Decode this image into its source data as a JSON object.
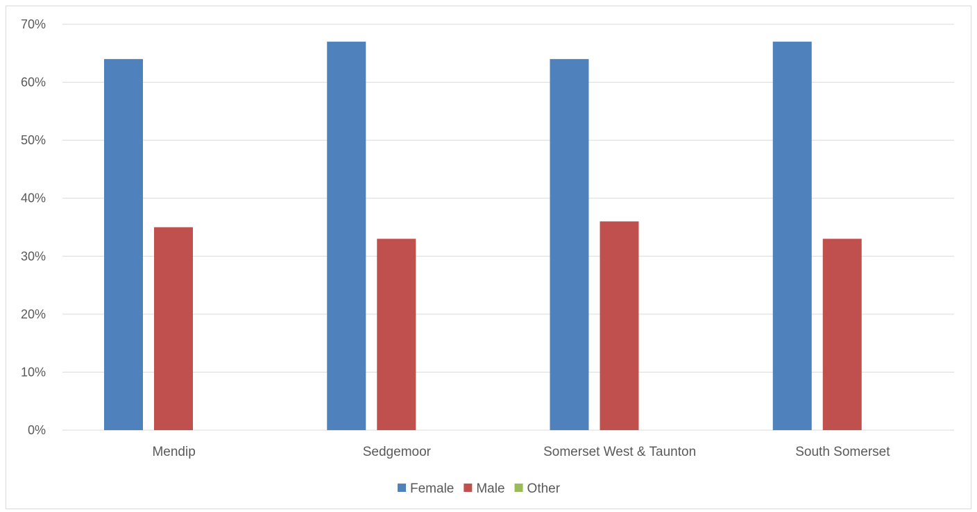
{
  "colors": {
    "female": "#4f81bd",
    "male": "#c0504d",
    "other": "#9bbb59",
    "grid": "#d9d9d9",
    "axis_text": "#595959"
  },
  "chart_data": {
    "type": "bar",
    "categories": [
      "Mendip",
      "Sedgemoor",
      "Somerset West & Taunton",
      "South Somerset"
    ],
    "series": [
      {
        "name": "Female",
        "values": [
          64,
          67,
          64,
          67
        ]
      },
      {
        "name": "Male",
        "values": [
          35,
          33,
          36,
          33
        ]
      },
      {
        "name": "Other",
        "values": [
          0,
          0,
          0,
          0
        ]
      }
    ],
    "ylim": [
      0,
      70
    ],
    "yticks": [
      "0%",
      "10%",
      "20%",
      "30%",
      "40%",
      "50%",
      "60%",
      "70%"
    ],
    "grid": true,
    "legend": "bottom"
  }
}
